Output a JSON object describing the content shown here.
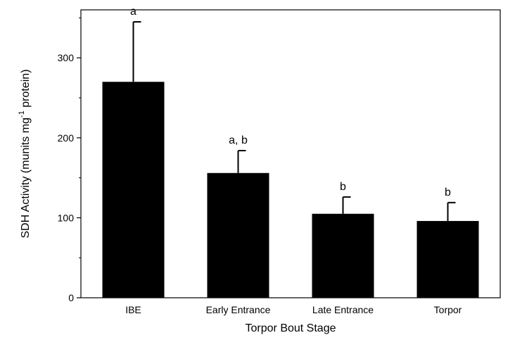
{
  "chart_data": {
    "type": "bar",
    "xlabel": "Torpor Bout Stage",
    "ylabel": {
      "prefix": "SDH Activity (munits mg",
      "superscript": "-1",
      "suffix": " protein)"
    },
    "ylim": [
      0,
      360
    ],
    "yticks": [
      0,
      100,
      200,
      300
    ],
    "yticks_minor": [
      50,
      150,
      250,
      350
    ],
    "categories": [
      "IBE",
      "Early Entrance",
      "Late Entrance",
      "Torpor"
    ],
    "values": [
      270,
      156,
      105,
      96
    ],
    "errors_upper": [
      75,
      28,
      21,
      23
    ],
    "significance_labels": [
      "a",
      "a, b",
      "b",
      "b"
    ],
    "bar_color": "#000000",
    "grid": false,
    "legend": "none"
  }
}
